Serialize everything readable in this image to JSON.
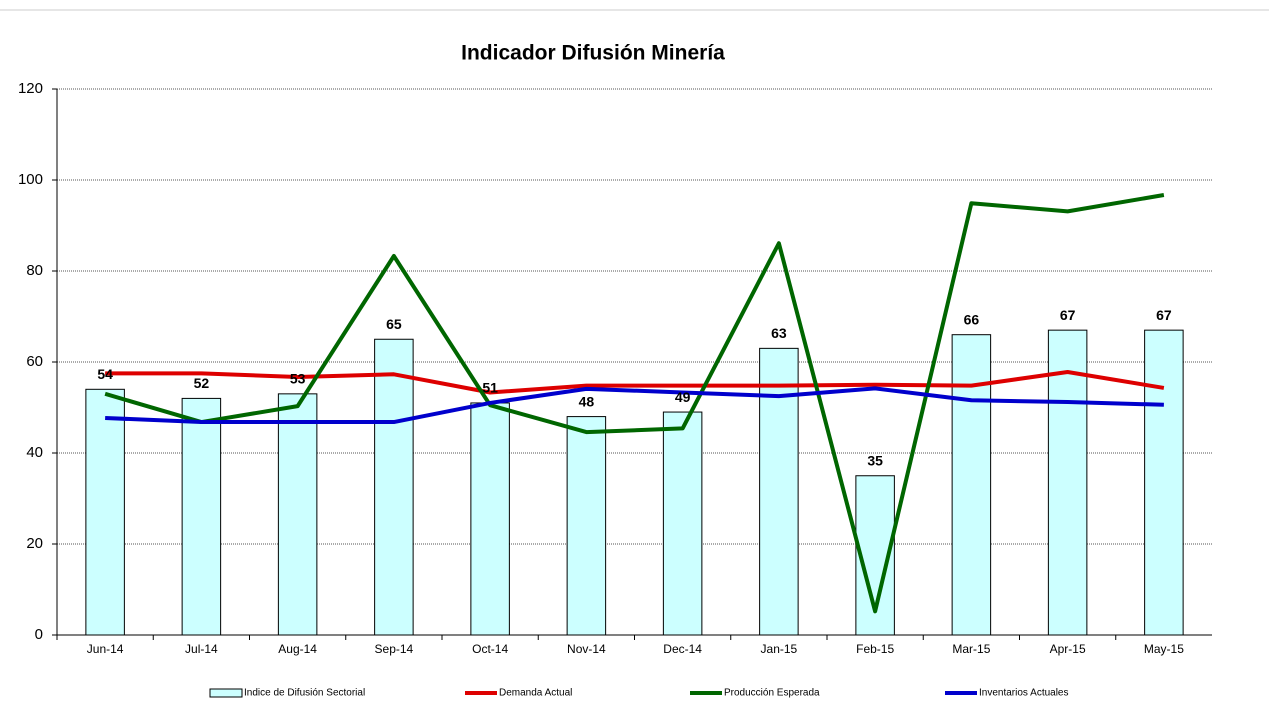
{
  "chart_data": {
    "type": "bar_line",
    "title": "Indicador Difusión Minería",
    "categories": [
      "Jun-14",
      "Jul-14",
      "Aug-14",
      "Sep-14",
      "Oct-14",
      "Nov-14",
      "Dec-14",
      "Jan-15",
      "Feb-15",
      "Mar-15",
      "Apr-15",
      "May-15"
    ],
    "ylim": [
      0,
      120
    ],
    "yticks": [
      0,
      20,
      40,
      60,
      80,
      100,
      120
    ],
    "grid": true,
    "legend": "bottom",
    "series": [
      {
        "name": "Indice de Difusión Sectorial",
        "type": "bar",
        "color": "#ccffff",
        "values": [
          54,
          52,
          53,
          65,
          51,
          48,
          49,
          63,
          35,
          66,
          67,
          67
        ]
      },
      {
        "name": "Demanda Actual",
        "type": "line",
        "color": "#dd0000",
        "values": [
          57.5,
          57.5,
          56.7,
          57.3,
          53.3,
          54.8,
          54.8,
          54.8,
          55,
          54.8,
          57.8,
          54.3
        ]
      },
      {
        "name": "Producción Esperada",
        "type": "line",
        "color": "#006600",
        "values": [
          53,
          46.8,
          50.3,
          83.3,
          50.5,
          44.6,
          45.4,
          86.1,
          5.2,
          94.9,
          93.1,
          96.7
        ]
      },
      {
        "name": "Inventarios Actuales",
        "type": "line",
        "color": "#0000cc",
        "values": [
          47.7,
          46.8,
          46.8,
          46.8,
          51,
          54.1,
          53.3,
          52.5,
          54.2,
          51.6,
          51.2,
          50.6
        ]
      }
    ]
  }
}
